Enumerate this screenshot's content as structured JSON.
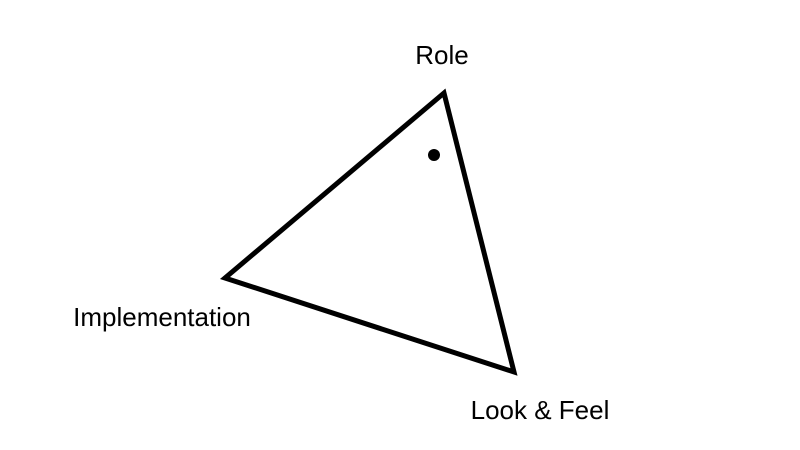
{
  "diagram": {
    "vertices": {
      "top": "Role",
      "left": "Implementation",
      "bottom_right": "Look & Feel"
    },
    "colors": {
      "stroke": "#000000",
      "marker": "#000000",
      "background": "#ffffff"
    }
  }
}
